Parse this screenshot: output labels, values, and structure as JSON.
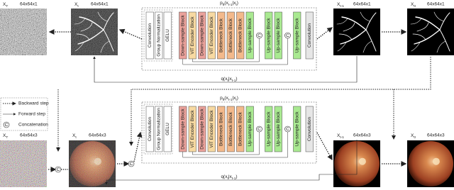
{
  "legend": [
    {
      "label": "Backward step",
      "style": "dashed"
    },
    {
      "label": "Forward step",
      "style": "solid"
    },
    {
      "label": "Concatenation",
      "symbol": "C"
    }
  ],
  "rows": [
    {
      "images": [
        {
          "name": [
            {
              "t": "X"
            },
            {
              "s": "T"
            }
          ],
          "size": "64x64x1",
          "kind": "noise-gray"
        },
        {
          "name": [
            {
              "t": "X"
            },
            {
              "s": "t"
            }
          ],
          "size": "64x64x1",
          "kind": "vessel-noisy"
        },
        {
          "name": [
            {
              "t": "X"
            },
            {
              "s": "t-1"
            }
          ],
          "size": "64x64x1",
          "kind": "vessel"
        },
        {
          "name": [
            {
              "t": "X"
            },
            {
              "s": "0"
            }
          ],
          "size": "64x64x1",
          "kind": "vessel"
        }
      ],
      "network_title": [
        {
          "t": "p"
        },
        {
          "s": "θ"
        },
        {
          "t": "(x"
        },
        {
          "s": "t-1"
        },
        {
          "t": "|x"
        },
        {
          "s": "t"
        },
        {
          "t": ")"
        }
      ],
      "forward_label": [
        {
          "t": "q(x"
        },
        {
          "s": "t"
        },
        {
          "t": "|x"
        },
        {
          "s": "t-1"
        },
        {
          "t": ")"
        }
      ],
      "blocks": [
        {
          "label": "Convolution",
          "color": "#ffffff"
        },
        {
          "label": "Group Normalization",
          "color": "#ffffff"
        },
        {
          "label": "GELU",
          "color": "#ffffff"
        },
        {
          "label": "Down-sample Block",
          "color": "#eba29b"
        },
        {
          "label": "ViT Encoder Block",
          "color": "#f7d9a1"
        },
        {
          "label": "Down-sample Block",
          "color": "#eba29b"
        },
        {
          "label": "ViT Encoder Block",
          "color": "#f7d9a1"
        },
        {
          "label": "Bottleneck Block",
          "color": "#f3b98b"
        },
        {
          "label": "Bottleneck Block",
          "color": "#f3b98b"
        },
        {
          "label": "Bottleneck Block",
          "color": "#f3b98b"
        },
        {
          "label": "Up-sample Block",
          "color": "#a9e991"
        },
        {
          "label": "C",
          "shape": "circle"
        },
        {
          "label": "Up-sample Block",
          "color": "#a9e991"
        },
        {
          "label": "Up-sample Block",
          "color": "#a9e991"
        },
        {
          "label": "C",
          "shape": "circle"
        },
        {
          "label": "Up-sample Block",
          "color": "#a9e991"
        },
        {
          "label": "Convolution",
          "color": "#e6e6e6"
        }
      ]
    },
    {
      "images": [
        {
          "name": [
            {
              "t": "X"
            },
            {
              "s": "T"
            }
          ],
          "size": "64x64x3",
          "kind": "noise-color"
        },
        {
          "name": [
            {
              "t": "X"
            },
            {
              "s": "t"
            }
          ],
          "size": "64x64x3",
          "kind": "fundus-noisy"
        },
        {
          "name": [
            {
              "t": "X"
            },
            {
              "s": "t-1"
            }
          ],
          "size": "64x64x3",
          "kind": "fundus"
        },
        {
          "name": [
            {
              "t": "X"
            },
            {
              "s": "0"
            }
          ],
          "size": "64x64x3",
          "kind": "fundus"
        }
      ],
      "conditions": [
        "C",
        "C"
      ],
      "network_title": [
        {
          "t": "p"
        },
        {
          "s": "θ"
        },
        {
          "t": "(x"
        },
        {
          "s": "t-1"
        },
        {
          "t": "|x"
        },
        {
          "s": "t"
        },
        {
          "t": ")"
        }
      ],
      "forward_label": [
        {
          "t": "q(x"
        },
        {
          "s": "t"
        },
        {
          "t": "|x"
        },
        {
          "s": "t-1"
        },
        {
          "t": ")"
        }
      ],
      "blocks": [
        {
          "label": "Convolution",
          "color": "#ffffff"
        },
        {
          "label": "Group Normalization",
          "color": "#ffffff"
        },
        {
          "label": "GELU",
          "color": "#ffffff"
        },
        {
          "label": "Down-sample Block",
          "color": "#eba29b"
        },
        {
          "label": "ViT Encoder Block",
          "color": "#f7d9a1"
        },
        {
          "label": "Down-sample Block",
          "color": "#eba29b"
        },
        {
          "label": "ViT Encoder Block",
          "color": "#f7d9a1"
        },
        {
          "label": "Bottleneck Block",
          "color": "#f3b98b"
        },
        {
          "label": "Bottleneck Block",
          "color": "#f3b98b"
        },
        {
          "label": "Bottleneck Block",
          "color": "#f3b98b"
        },
        {
          "label": "Up-sample Block",
          "color": "#a9e991"
        },
        {
          "label": "C",
          "shape": "circle"
        },
        {
          "label": "Up-sample Block",
          "color": "#a9e991"
        },
        {
          "label": "Up-sample Block",
          "color": "#a9e991"
        },
        {
          "label": "C",
          "shape": "circle"
        },
        {
          "label": "Up-sample Block",
          "color": "#a9e991"
        },
        {
          "label": "Convolution",
          "color": "#e6e6e6"
        }
      ]
    }
  ]
}
